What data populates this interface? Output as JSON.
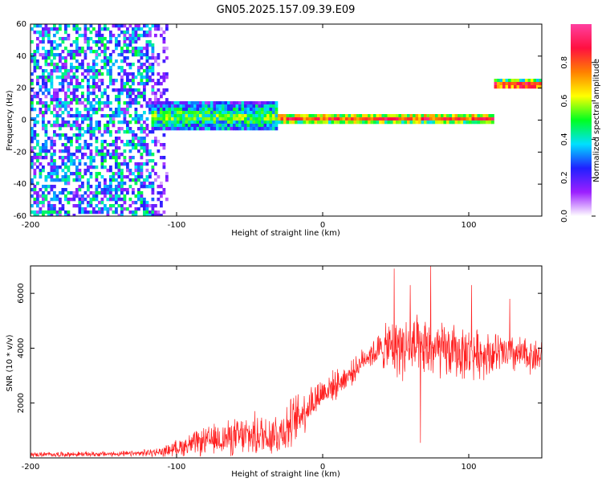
{
  "title": "GN05.2025.157.09.39.E09",
  "chart_data": [
    {
      "type": "heatmap",
      "xlabel": "Height of straight line (km)",
      "ylabel": "Frequency (Hz)",
      "xlim": [
        -200,
        150
      ],
      "ylim": [
        -60,
        60
      ],
      "xticks": [
        "-200",
        "-100",
        "0",
        "100"
      ],
      "yticks": [
        "-60",
        "-40",
        "-20",
        "0",
        "20",
        "40",
        "60"
      ],
      "colorbar": {
        "label": "Normalized spectral amplitude",
        "range": [
          0,
          1
        ],
        "ticks": [
          "0.0",
          "0.2",
          "0.4",
          "0.6",
          "0.8"
        ],
        "colors": [
          "#ffffff",
          "#9c1fff",
          "#2020ff",
          "#00e0ff",
          "#00ff20",
          "#ffff00",
          "#ff8000",
          "#ff1040",
          "#ff40a0"
        ]
      },
      "features": [
        {
          "name": "noise",
          "x": [
            -200,
            -105
          ],
          "y": [
            -60,
            60
          ],
          "level": 0.25
        },
        {
          "name": "signal",
          "x": [
            -118,
            -30
          ],
          "y_center": 2,
          "y_spread": 9,
          "level": 0.45
        },
        {
          "name": "signal",
          "x": [
            -30,
            117
          ],
          "y_center": 1,
          "y_spread": 3,
          "level": 0.75
        },
        {
          "name": "signal",
          "x": [
            117,
            150
          ],
          "y_center": 22,
          "y_spread": 3,
          "level": 0.85
        }
      ]
    },
    {
      "type": "line",
      "xlabel": "Height of straight line (km)",
      "ylabel": "SNR (10 * v/v)",
      "xlim": [
        -200,
        150
      ],
      "ylim": [
        0,
        7000
      ],
      "xticks": [
        "-200",
        "-100",
        "0",
        "100"
      ],
      "yticks": [
        "2000",
        "4000",
        "6000"
      ],
      "color": "#ff2020",
      "trend": {
        "x": [
          -200,
          -130,
          -110,
          -90,
          -70,
          -50,
          -30,
          -20,
          -10,
          0,
          10,
          20,
          30,
          40,
          50,
          70,
          100,
          120,
          150
        ],
        "y": [
          120,
          150,
          220,
          500,
          700,
          800,
          900,
          1300,
          1900,
          2400,
          2700,
          3100,
          3700,
          3950,
          4100,
          3950,
          3800,
          3800,
          3700
        ]
      },
      "noise": {
        "x": [
          -200,
          -130,
          -110,
          -90,
          -70,
          -50,
          -30,
          -20,
          -10,
          0,
          10,
          20,
          30,
          40,
          50,
          70,
          100,
          120,
          150
        ],
        "y": [
          100,
          120,
          200,
          500,
          700,
          900,
          1000,
          1100,
          900,
          700,
          600,
          500,
          500,
          800,
          1400,
          1300,
          1100,
          900,
          700
        ]
      },
      "peaks": [
        {
          "x": 49,
          "y": 6900
        },
        {
          "x": 60,
          "y": 6300
        },
        {
          "x": 74,
          "y": 7000
        },
        {
          "x": 67,
          "y": 550
        },
        {
          "x": 102,
          "y": 6300
        },
        {
          "x": 128,
          "y": 5800
        }
      ]
    }
  ]
}
